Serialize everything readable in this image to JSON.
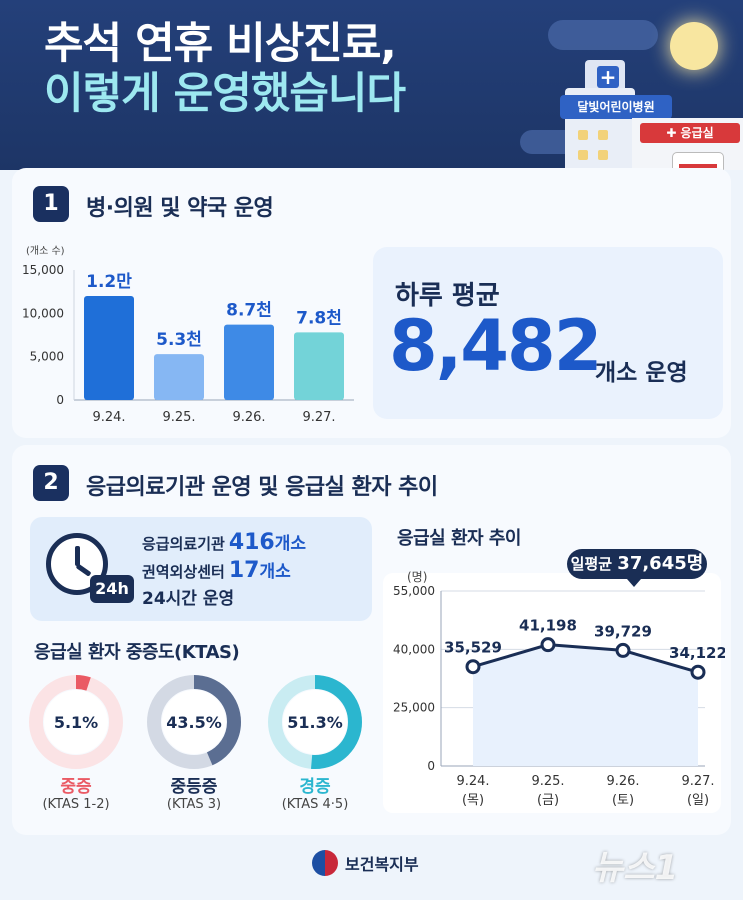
{
  "header": {
    "title_line1": "추석 연휴 비상진료,",
    "title_line2": "이렇게 운영했습니다",
    "hospital_sign": "달빛어린이병원",
    "er_sign": "✚ 응급실"
  },
  "section1": {
    "number": "1",
    "title": "병·의원 및 약국 운영",
    "average_label": "하루 평균",
    "average_value": "8,482",
    "average_unit": "개소 운영"
  },
  "section2": {
    "number": "2",
    "title": "응급의료기관 운영 및 응급실 환자 추이",
    "clock_tag": "24h",
    "info_lines": [
      {
        "label": "응급의료기관",
        "value": "416",
        "unit": "개소"
      },
      {
        "label": "권역외상센터",
        "value": "17",
        "unit": "개소"
      }
    ],
    "info_plain": "24시간 운영",
    "ktas_title": "응급실 환자 중증도(KTAS)",
    "line_title": "응급실 환자 추이",
    "daily_avg_label": "일평균",
    "daily_avg_value": "37,645명"
  },
  "footer": {
    "ministry": "보건복지부",
    "watermark": "뉴스1"
  },
  "colors": {
    "accent": "#1d59c9",
    "navy": "#1a2e55",
    "bar_0": "#1f6fd8",
    "bar_1": "#86b7f3",
    "bar_2": "#3e8ae6",
    "bar_3": "#73d3d8",
    "donut_severe": "#ea5a64",
    "donut_mid": "#5b6e92",
    "donut_mild": "#2bb6cf"
  },
  "chart_data": [
    {
      "type": "bar",
      "ylabel": "(개소 수)",
      "categories": [
        "9.24.",
        "9.25.",
        "9.26.",
        "9.27."
      ],
      "values": [
        12000,
        5300,
        8700,
        7800
      ],
      "data_labels": [
        "1.2만",
        "5.3천",
        "8.7천",
        "7.8천"
      ],
      "yticks": [
        "15,000",
        "10,000",
        "5,000",
        "0"
      ],
      "ytick_values": [
        15000,
        10000,
        5000,
        0
      ],
      "ylim": [
        0,
        15000
      ],
      "grid": false
    },
    {
      "type": "line",
      "ylabel": "(명)",
      "categories": [
        "9.24.",
        "9.25.",
        "9.26.",
        "9.27."
      ],
      "category_days": [
        "(목)",
        "(금)",
        "(토)",
        "(일)"
      ],
      "values": [
        35529,
        41198,
        39729,
        34122
      ],
      "data_labels": [
        "35,529",
        "41,198",
        "39,729",
        "34,122"
      ],
      "yticks": [
        "55,000",
        "40,000",
        "25,000",
        "0"
      ],
      "ytick_values": [
        55000,
        40000,
        25000,
        0
      ],
      "grid": true
    },
    {
      "type": "pie",
      "title": "응급실 환자 중증도(KTAS)",
      "slices": [
        {
          "name": "중증",
          "sub": "(KTAS 1-2)",
          "value": 5.1,
          "label": "5.1%"
        },
        {
          "name": "중등증",
          "sub": "(KTAS 3)",
          "value": 43.5,
          "label": "43.5%"
        },
        {
          "name": "경증",
          "sub": "(KTAS 4·5)",
          "value": 51.3,
          "label": "51.3%"
        }
      ]
    }
  ]
}
